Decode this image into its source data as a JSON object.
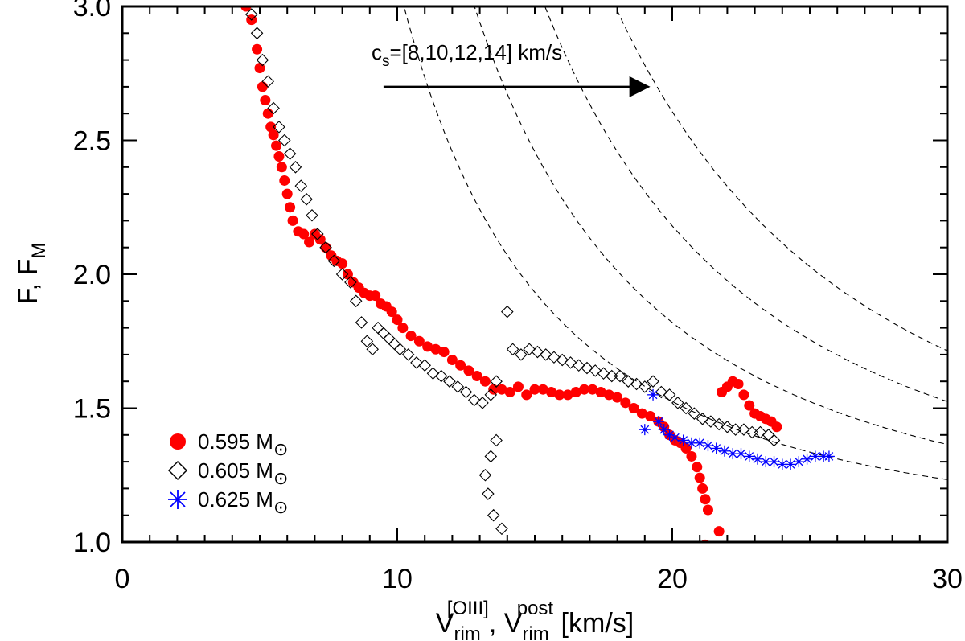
{
  "chart_data": {
    "type": "scatter",
    "title": "",
    "xlabel": {
      "base": "V",
      "sub": "rim",
      "sup1": "[OIII]",
      "sep": ", ",
      "sup2": "post",
      "units": " [km/s]"
    },
    "ylabel": {
      "base": "F, F",
      "sub": "M"
    },
    "xlim": [
      0,
      30
    ],
    "ylim": [
      1.0,
      3.0
    ],
    "x_ticks": [
      0,
      10,
      20,
      30
    ],
    "x_tick_labels": [
      "0",
      "10",
      "20",
      "30"
    ],
    "y_ticks": [
      1.0,
      1.5,
      2.0,
      2.5,
      3.0
    ],
    "y_tick_labels": [
      "1.0",
      "1.5",
      "2.0",
      "2.5",
      "3.0"
    ],
    "grid": false,
    "annotation": {
      "base": "c",
      "sub": "s",
      "text": "=[8,10,12,14] km/s",
      "arrow_from": [
        9.5,
        2.7
      ],
      "arrow_to": [
        19.2,
        2.7
      ]
    },
    "reference_curves": {
      "style": "dashed",
      "cs": [
        8,
        10,
        12,
        14
      ],
      "formula": "F = 1 + 3.28*cs^2/V^2"
    },
    "legend": {
      "position": "bottom-left",
      "entries": [
        {
          "label": "0.595 M",
          "symbol": "filled-circle",
          "color": "#ff0000",
          "solar": "⊙"
        },
        {
          "label": "0.605 M",
          "symbol": "open-diamond",
          "color": "#000000",
          "solar": "⊙"
        },
        {
          "label": "0.625 M",
          "symbol": "asterisk",
          "color": "#0000ff",
          "solar": "⊙"
        }
      ]
    },
    "series": [
      {
        "name": "0.595 M⊙",
        "marker": "filled-circle",
        "color": "#ff0000",
        "x": [
          4.5,
          4.7,
          4.9,
          5.0,
          5.1,
          5.2,
          5.3,
          5.4,
          5.5,
          5.6,
          5.7,
          5.8,
          5.9,
          6.0,
          6.1,
          6.2,
          6.4,
          6.6,
          6.8,
          7.0,
          7.2,
          7.4,
          7.6,
          7.8,
          8.0,
          8.2,
          8.4,
          8.6,
          8.8,
          9.0,
          9.2,
          9.4,
          9.6,
          9.8,
          10.0,
          10.2,
          10.5,
          10.8,
          11.1,
          11.4,
          11.7,
          12.0,
          12.3,
          12.6,
          12.9,
          13.2,
          13.5,
          13.8,
          14.1,
          14.4,
          14.7,
          15.0,
          15.3,
          15.6,
          15.9,
          16.2,
          16.5,
          16.8,
          17.1,
          17.4,
          17.7,
          18.0,
          18.3,
          18.6,
          18.9,
          19.2,
          19.5,
          19.7,
          19.9,
          20.1,
          20.3,
          20.5,
          20.7,
          20.9,
          21.0,
          21.1,
          21.2,
          21.3,
          21.8,
          22.0,
          22.2,
          22.4,
          22.6,
          22.8,
          23.0,
          23.2,
          23.4,
          23.6,
          23.8,
          21.2,
          21.7
        ],
        "y": [
          3.0,
          2.95,
          2.84,
          2.77,
          2.7,
          2.65,
          2.6,
          2.55,
          2.52,
          2.48,
          2.44,
          2.4,
          2.35,
          2.3,
          2.25,
          2.2,
          2.16,
          2.15,
          2.12,
          2.15,
          2.13,
          2.1,
          2.07,
          2.05,
          2.04,
          2.0,
          1.97,
          1.95,
          1.93,
          1.92,
          1.92,
          1.89,
          1.88,
          1.86,
          1.83,
          1.8,
          1.77,
          1.75,
          1.73,
          1.72,
          1.71,
          1.68,
          1.66,
          1.64,
          1.62,
          1.6,
          1.57,
          1.57,
          1.56,
          1.58,
          1.55,
          1.57,
          1.57,
          1.56,
          1.55,
          1.55,
          1.56,
          1.57,
          1.57,
          1.56,
          1.55,
          1.54,
          1.52,
          1.5,
          1.48,
          1.47,
          1.45,
          1.43,
          1.4,
          1.38,
          1.37,
          1.35,
          1.32,
          1.28,
          1.24,
          1.2,
          1.16,
          1.12,
          1.56,
          1.58,
          1.6,
          1.59,
          1.55,
          1.51,
          1.48,
          1.47,
          1.46,
          1.45,
          1.43,
          0.99,
          1.04
        ]
      },
      {
        "name": "0.605 M⊙",
        "marker": "open-diamond",
        "color": "#000000",
        "x": [
          4.7,
          4.9,
          5.1,
          5.3,
          5.5,
          5.7,
          5.9,
          6.1,
          6.3,
          6.5,
          6.7,
          6.9,
          7.1,
          7.4,
          7.7,
          8.0,
          8.3,
          8.5,
          8.7,
          8.9,
          9.1,
          9.3,
          9.5,
          9.7,
          9.9,
          10.1,
          10.4,
          10.7,
          11.0,
          11.3,
          11.6,
          11.9,
          12.2,
          12.5,
          12.8,
          13.1,
          13.4,
          13.6,
          13.6,
          13.4,
          13.2,
          13.3,
          13.5,
          13.8,
          14.0,
          14.2,
          14.5,
          14.8,
          15.1,
          15.4,
          15.7,
          16.0,
          16.3,
          16.6,
          16.9,
          17.2,
          17.5,
          17.8,
          18.1,
          18.4,
          18.7,
          19.0,
          19.3,
          19.6,
          19.9,
          20.2,
          20.5,
          20.8,
          21.1,
          21.4,
          21.7,
          22.0,
          22.3,
          22.6,
          22.9,
          23.2,
          23.5,
          23.7
        ],
        "y": [
          2.97,
          2.9,
          2.8,
          2.72,
          2.62,
          2.55,
          2.5,
          2.45,
          2.4,
          2.33,
          2.28,
          2.22,
          2.15,
          2.1,
          2.05,
          2.0,
          1.97,
          1.9,
          1.82,
          1.75,
          1.72,
          1.8,
          1.78,
          1.76,
          1.74,
          1.72,
          1.7,
          1.67,
          1.66,
          1.63,
          1.62,
          1.6,
          1.58,
          1.56,
          1.53,
          1.52,
          1.55,
          1.6,
          1.38,
          1.32,
          1.25,
          1.18,
          1.1,
          1.05,
          1.86,
          1.72,
          1.7,
          1.72,
          1.71,
          1.7,
          1.69,
          1.68,
          1.67,
          1.66,
          1.65,
          1.64,
          1.63,
          1.62,
          1.62,
          1.6,
          1.59,
          1.58,
          1.6,
          1.56,
          1.55,
          1.52,
          1.5,
          1.48,
          1.46,
          1.45,
          1.44,
          1.43,
          1.42,
          1.42,
          1.41,
          1.41,
          1.4,
          1.38
        ]
      },
      {
        "name": "0.625 M⊙",
        "marker": "asterisk",
        "color": "#0000ff",
        "x": [
          19.0,
          19.3,
          19.5,
          19.7,
          19.9,
          20.1,
          20.4,
          20.7,
          21.0,
          21.3,
          21.6,
          21.9,
          22.2,
          22.5,
          22.8,
          23.1,
          23.4,
          23.7,
          24.0,
          24.3,
          24.6,
          24.9,
          25.2,
          25.5,
          25.7
        ],
        "y": [
          1.42,
          1.55,
          1.45,
          1.42,
          1.4,
          1.39,
          1.38,
          1.37,
          1.37,
          1.36,
          1.35,
          1.34,
          1.33,
          1.33,
          1.32,
          1.31,
          1.3,
          1.3,
          1.29,
          1.29,
          1.3,
          1.31,
          1.32,
          1.32,
          1.32
        ]
      }
    ]
  }
}
